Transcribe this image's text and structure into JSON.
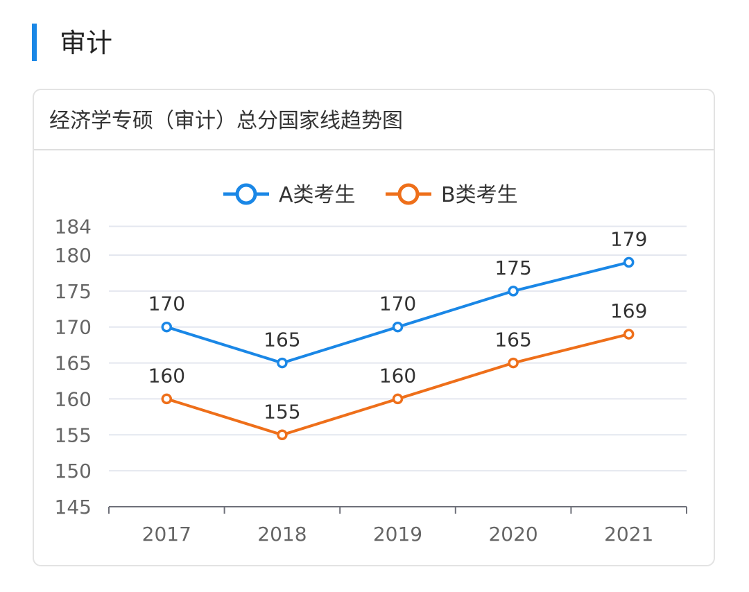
{
  "section": {
    "title": "审计"
  },
  "chart_data": {
    "type": "line",
    "title": "经济学专硕（审计）总分国家线趋势图",
    "categories": [
      "2017",
      "2018",
      "2019",
      "2020",
      "2021"
    ],
    "series": [
      {
        "name": "A类考生",
        "values": [
          170,
          165,
          170,
          175,
          179
        ],
        "color": "#1a87e6"
      },
      {
        "name": "B类考生",
        "values": [
          160,
          155,
          160,
          165,
          169
        ],
        "color": "#ee6f1a"
      }
    ],
    "yticks": [
      145,
      150,
      155,
      160,
      165,
      170,
      175,
      180,
      184
    ],
    "ylim": [
      145,
      184
    ],
    "grid": true,
    "legend": "top-center",
    "xlabel": "",
    "ylabel": ""
  }
}
